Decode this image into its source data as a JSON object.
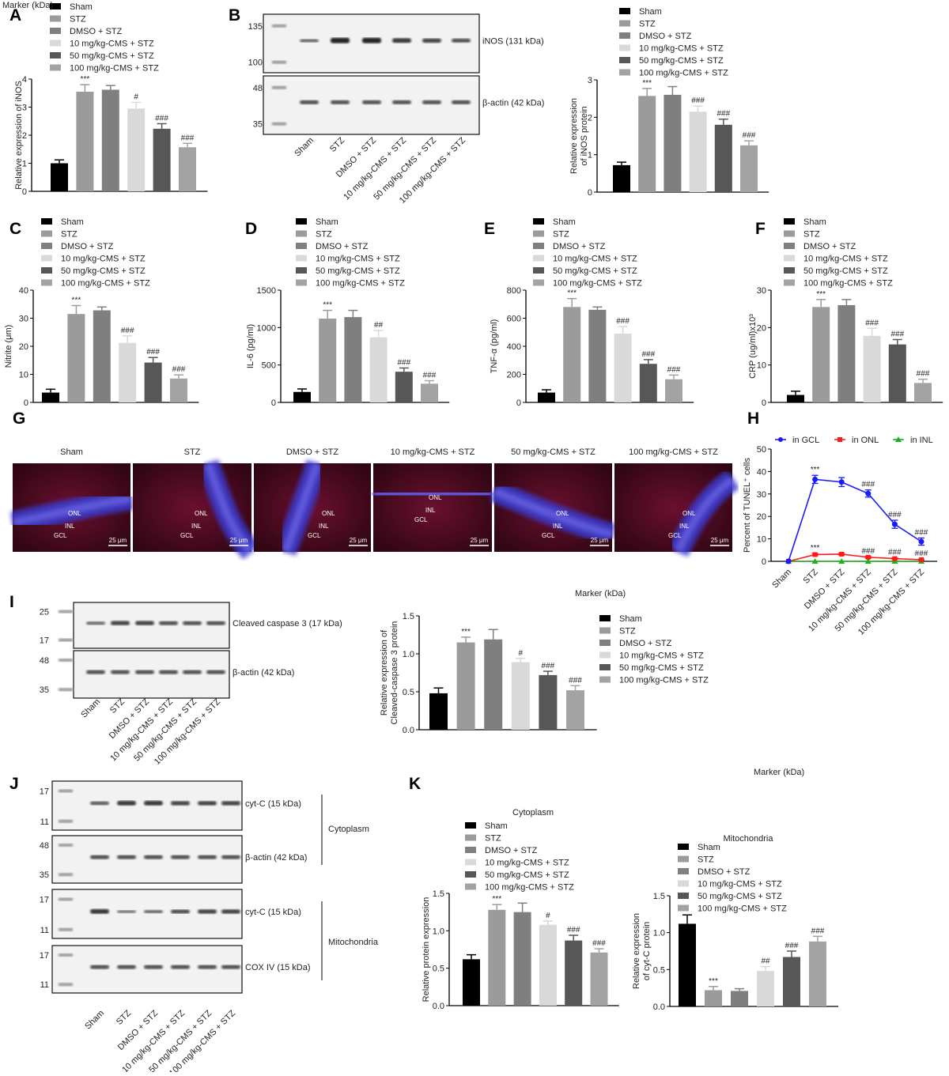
{
  "groups": [
    "Sham",
    "STZ",
    "DMSO + STZ",
    "10 mg/kg-CMS + STZ",
    "50 mg/kg-CMS + STZ",
    "100 mg/kg-CMS + STZ"
  ],
  "colors": [
    "#000000",
    "#9b9b9b",
    "#7f7f7f",
    "#d9d9d9",
    "#575757",
    "#a3a3a3"
  ],
  "panel_letters": [
    "A",
    "B",
    "C",
    "D",
    "E",
    "F",
    "G",
    "H",
    "I",
    "J",
    "K"
  ],
  "blots": {
    "B": {
      "marker_title": "Marker (kDa)",
      "rows": [
        {
          "label": "iNOS (131 kDa)",
          "markers": [
            "135",
            "100"
          ]
        },
        {
          "label": "β-actin (42 kDa)",
          "markers": [
            "48",
            "35"
          ]
        }
      ]
    },
    "I": {
      "marker_title": "Marker (kDa)",
      "rows": [
        {
          "label": "Cleaved caspase 3 (17 kDa)",
          "markers": [
            "25",
            "17"
          ]
        },
        {
          "label": "β-actin (42 kDa)",
          "markers": [
            "48",
            "35"
          ]
        }
      ]
    },
    "J": {
      "marker_title": "Marker (kDa)",
      "rows": [
        {
          "label": "cyt-C (15 kDa)",
          "markers": [
            "17",
            "11"
          ]
        },
        {
          "label": "β-actin (42 kDa)",
          "markers": [
            "48",
            "35"
          ]
        },
        {
          "label": "cyt-C (15 kDa)",
          "markers": [
            "17",
            "11"
          ]
        },
        {
          "label": "COX IV (15 kDa)",
          "markers": [
            "17",
            "11"
          ]
        }
      ],
      "fractions": [
        "Cytoplasm",
        "Mitochondria"
      ]
    }
  },
  "micrographs": {
    "labels": [
      "Sham",
      "STZ",
      "DMSO + STZ",
      "10 mg/kg-CMS + STZ",
      "50 mg/kg-CMS + STZ",
      "100 mg/kg-CMS + STZ"
    ],
    "layers": [
      [
        "ONL",
        "INL",
        "GCL"
      ],
      [
        "ONL",
        "INL",
        "GCL"
      ],
      [
        "ONL",
        "INL",
        "GCL"
      ],
      [
        "ONL",
        "INL",
        "GCL"
      ],
      [
        "ONL",
        "INL",
        "GCL"
      ],
      [
        "ONL",
        "INL",
        "GCL"
      ]
    ],
    "scale_bar": "25 μm"
  },
  "chart_data": [
    {
      "panel": "A",
      "type": "bar",
      "ylabel": [
        "Relative expression of iNOS"
      ],
      "yticks": [
        "0",
        "1",
        "2",
        "3",
        "4"
      ],
      "ylim": [
        0,
        4
      ],
      "values": [
        1.0,
        3.55,
        3.62,
        2.95,
        2.23,
        1.57
      ],
      "errors": [
        0.12,
        0.25,
        0.15,
        0.22,
        0.18,
        0.14
      ],
      "annotations": [
        "",
        "***",
        "",
        "#",
        "###",
        "###"
      ]
    },
    {
      "panel": "B",
      "type": "bar",
      "ylabel": [
        "Relative expression",
        "of iNOS protein"
      ],
      "yticks": [
        "0",
        "1",
        "2",
        "3"
      ],
      "ylim": [
        0,
        3
      ],
      "values": [
        0.72,
        2.57,
        2.6,
        2.15,
        1.8,
        1.25
      ],
      "errors": [
        0.08,
        0.2,
        0.22,
        0.15,
        0.15,
        0.12
      ],
      "annotations": [
        "",
        "***",
        "",
        "###",
        "###",
        "###"
      ]
    },
    {
      "panel": "C",
      "type": "bar",
      "ylabel": [
        "Nitrite (μm)"
      ],
      "yticks": [
        "0",
        "10",
        "20",
        "30",
        "40"
      ],
      "ylim": [
        0,
        40
      ],
      "values": [
        3.5,
        31.5,
        32.8,
        21.2,
        14.2,
        8.5
      ],
      "errors": [
        1.2,
        3,
        1.2,
        2.5,
        1.8,
        1.3
      ],
      "annotations": [
        "",
        "***",
        "",
        "###",
        "###",
        "###"
      ]
    },
    {
      "panel": "D",
      "type": "bar",
      "ylabel": [
        "IL-6 (pg/ml)"
      ],
      "yticks": [
        "0",
        "500",
        "1000",
        "1500"
      ],
      "ylim": [
        0,
        1500
      ],
      "values": [
        140,
        1120,
        1140,
        870,
        410,
        250
      ],
      "errors": [
        40,
        110,
        90,
        90,
        50,
        40
      ],
      "annotations": [
        "",
        "***",
        "",
        "##",
        "###",
        "###"
      ]
    },
    {
      "panel": "E",
      "type": "bar",
      "ylabel": [
        "TNF-α (pg/ml)"
      ],
      "yticks": [
        "0",
        "200",
        "400",
        "600",
        "800"
      ],
      "ylim": [
        0,
        800
      ],
      "values": [
        70,
        680,
        660,
        490,
        275,
        165
      ],
      "errors": [
        20,
        60,
        20,
        50,
        30,
        30
      ],
      "annotations": [
        "",
        "***",
        "",
        "###",
        "###",
        "###"
      ]
    },
    {
      "panel": "F",
      "type": "bar",
      "ylabel": [
        "CRP (ug/ml)x10³"
      ],
      "yticks": [
        "0",
        "10",
        "20",
        "30"
      ],
      "ylim": [
        0,
        30
      ],
      "values": [
        2,
        25.5,
        26,
        17.8,
        15.5,
        5.2
      ],
      "errors": [
        1,
        2,
        1.5,
        2,
        1.3,
        1
      ],
      "annotations": [
        "",
        "***",
        "",
        "###",
        "###",
        "###"
      ]
    },
    {
      "panel": "H",
      "type": "line",
      "ylabel": [
        "Percent of TUNEL⁺ cells"
      ],
      "yticks": [
        "0",
        "10",
        "20",
        "30",
        "40",
        "50"
      ],
      "ylim": [
        0,
        50
      ],
      "categories": [
        "Sham",
        "STZ",
        "DMSO + STZ",
        "10 mg/kg-CMS + STZ",
        "50 mg/kg-CMS + STZ",
        "100 mg/kg-CMS + STZ"
      ],
      "series": [
        {
          "name": "in GCL",
          "color": "#1a1aff",
          "marker": "circle",
          "values": [
            0,
            36.5,
            35.3,
            30.2,
            16.5,
            8.8
          ],
          "errors": [
            0,
            1.8,
            2,
            1.6,
            1.8,
            1.6
          ],
          "annotations": [
            "",
            "***",
            "",
            "###",
            "###",
            "###"
          ]
        },
        {
          "name": "in ONL",
          "color": "#ff1a1a",
          "marker": "square",
          "values": [
            0,
            3,
            3.2,
            1.8,
            1.2,
            0.7
          ],
          "errors": [
            0,
            0.5,
            0.4,
            0.4,
            0.3,
            0.3
          ],
          "annotations": [
            "",
            "***",
            "",
            "###",
            "###",
            "###"
          ]
        },
        {
          "name": "in INL",
          "color": "#1ab31a",
          "marker": "triangle",
          "values": [
            0,
            0,
            0,
            0,
            0,
            0
          ],
          "errors": [
            0,
            0,
            0,
            0,
            0,
            0
          ],
          "annotations": [
            "",
            "",
            "",
            "",
            "",
            ""
          ]
        }
      ],
      "legend": "top"
    },
    {
      "panel": "I",
      "type": "bar",
      "ylabel": [
        "Relative expression of",
        "Cleaved-caspase 3 protein"
      ],
      "yticks": [
        "0.0",
        "0.5",
        "1.0",
        "1.5"
      ],
      "ylim": [
        0,
        1.5
      ],
      "values": [
        0.48,
        1.15,
        1.19,
        0.89,
        0.72,
        0.52
      ],
      "errors": [
        0.07,
        0.07,
        0.13,
        0.05,
        0.05,
        0.06
      ],
      "annotations": [
        "",
        "***",
        "",
        "#",
        "###",
        "###"
      ]
    },
    {
      "panel": "K",
      "type": "bar",
      "title": "Cytoplasm",
      "ylabel": [
        "Relative protein expression"
      ],
      "yticks": [
        "0.0",
        "0.5",
        "1.0",
        "1.5"
      ],
      "ylim": [
        0,
        1.5
      ],
      "values": [
        0.62,
        1.28,
        1.25,
        1.08,
        0.87,
        0.71
      ],
      "errors": [
        0.06,
        0.07,
        0.12,
        0.05,
        0.07,
        0.05
      ],
      "annotations": [
        "",
        "***",
        "",
        "#",
        "###",
        "###"
      ]
    },
    {
      "panel": "K",
      "type": "bar",
      "title": "Mitochondria",
      "ylabel": [
        "Relative expression",
        "of cyt-C protein"
      ],
      "yticks": [
        "0.0",
        "0.5",
        "1.0",
        "1.5"
      ],
      "ylim": [
        0,
        1.5
      ],
      "values": [
        1.12,
        0.22,
        0.21,
        0.48,
        0.67,
        0.88
      ],
      "errors": [
        0.12,
        0.05,
        0.03,
        0.06,
        0.08,
        0.07
      ],
      "annotations": [
        "",
        "***",
        "",
        "##",
        "###",
        "###"
      ]
    }
  ]
}
